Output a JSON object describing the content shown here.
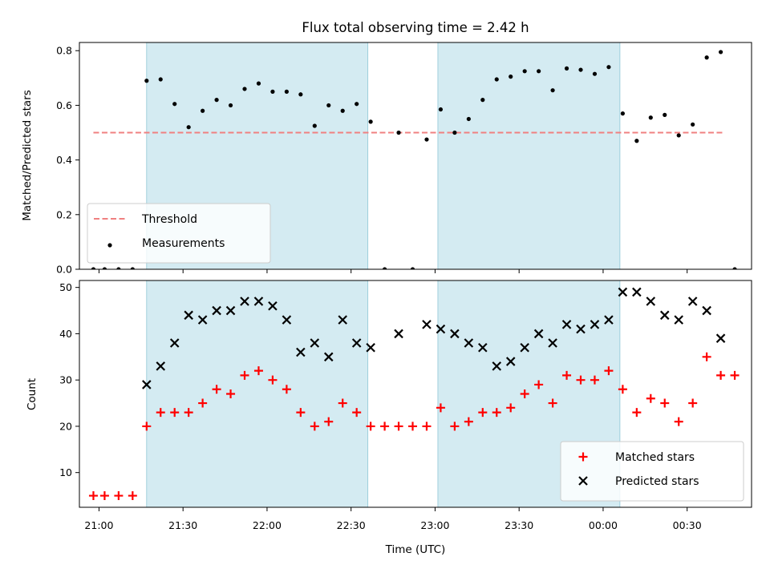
{
  "chart_data": [
    {
      "type": "scatter",
      "title": "Flux total observing time = 2.42 h",
      "xlabel": "",
      "ylabel": "Matched/Predicted stars",
      "xlim": [
        "20:53",
        "00:53"
      ],
      "ylim": [
        0,
        0.83
      ],
      "yticks": [
        "0.0",
        "0.2",
        "0.4",
        "0.6",
        "0.8"
      ],
      "grid": false,
      "shaded_intervals": [
        [
          "21:17",
          "22:36"
        ],
        [
          "23:01",
          "00:06"
        ]
      ],
      "threshold": {
        "name": "Threshold",
        "value": 0.5,
        "x_range": [
          "20:58",
          "00:43"
        ],
        "color": "#f08080"
      },
      "series": [
        {
          "name": "Measurements",
          "color": "#000000",
          "points": [
            [
              "20:58",
              0.0
            ],
            [
              "21:02",
              0.0
            ],
            [
              "21:07",
              0.0
            ],
            [
              "21:12",
              0.0
            ],
            [
              "21:17",
              0.69
            ],
            [
              "21:22",
              0.695
            ],
            [
              "21:27",
              0.605
            ],
            [
              "21:32",
              0.52
            ],
            [
              "21:37",
              0.58
            ],
            [
              "21:42",
              0.62
            ],
            [
              "21:47",
              0.6
            ],
            [
              "21:52",
              0.66
            ],
            [
              "21:57",
              0.68
            ],
            [
              "22:02",
              0.65
            ],
            [
              "22:07",
              0.65
            ],
            [
              "22:12",
              0.64
            ],
            [
              "22:17",
              0.525
            ],
            [
              "22:22",
              0.6
            ],
            [
              "22:27",
              0.58
            ],
            [
              "22:32",
              0.605
            ],
            [
              "22:37",
              0.54
            ],
            [
              "22:42",
              0.0
            ],
            [
              "22:47",
              0.5
            ],
            [
              "22:52",
              0.0
            ],
            [
              "22:57",
              0.475
            ],
            [
              "23:02",
              0.585
            ],
            [
              "23:07",
              0.5
            ],
            [
              "23:12",
              0.55
            ],
            [
              "23:17",
              0.62
            ],
            [
              "23:22",
              0.695
            ],
            [
              "23:27",
              0.705
            ],
            [
              "23:32",
              0.725
            ],
            [
              "23:37",
              0.725
            ],
            [
              "23:42",
              0.655
            ],
            [
              "23:47",
              0.735
            ],
            [
              "23:52",
              0.73
            ],
            [
              "23:57",
              0.715
            ],
            [
              "00:02",
              0.74
            ],
            [
              "00:07",
              0.57
            ],
            [
              "00:12",
              0.47
            ],
            [
              "00:17",
              0.555
            ],
            [
              "00:22",
              0.565
            ],
            [
              "00:27",
              0.49
            ],
            [
              "00:32",
              0.53
            ],
            [
              "00:37",
              0.775
            ],
            [
              "00:42",
              0.795
            ],
            [
              "00:47",
              0.0
            ]
          ]
        }
      ],
      "legend": {
        "placement": "lower-left",
        "entries": [
          "Threshold",
          "Measurements"
        ]
      }
    },
    {
      "type": "scatter",
      "title": "",
      "xlabel": "Time (UTC)",
      "ylabel": "Count",
      "xlim": [
        "20:53",
        "00:53"
      ],
      "ylim": [
        2.5,
        51.5
      ],
      "xticks": [
        "21:00",
        "21:30",
        "22:00",
        "22:30",
        "23:00",
        "23:30",
        "00:00",
        "00:30"
      ],
      "yticks": [
        "10",
        "20",
        "30",
        "40",
        "50"
      ],
      "grid": false,
      "shaded_intervals": [
        [
          "21:17",
          "22:36"
        ],
        [
          "23:01",
          "00:06"
        ]
      ],
      "series": [
        {
          "name": "Matched stars",
          "marker": "plus",
          "color": "#ff0000",
          "points": [
            [
              "20:58",
              5
            ],
            [
              "21:02",
              5
            ],
            [
              "21:07",
              5
            ],
            [
              "21:12",
              5
            ],
            [
              "21:17",
              20
            ],
            [
              "21:22",
              23
            ],
            [
              "21:27",
              23
            ],
            [
              "21:32",
              23
            ],
            [
              "21:37",
              25
            ],
            [
              "21:42",
              28
            ],
            [
              "21:47",
              27
            ],
            [
              "21:52",
              31
            ],
            [
              "21:57",
              32
            ],
            [
              "22:02",
              30
            ],
            [
              "22:07",
              28
            ],
            [
              "22:12",
              23
            ],
            [
              "22:17",
              20
            ],
            [
              "22:22",
              21
            ],
            [
              "22:27",
              25
            ],
            [
              "22:32",
              23
            ],
            [
              "22:37",
              20
            ],
            [
              "22:42",
              20
            ],
            [
              "22:47",
              20
            ],
            [
              "22:52",
              20
            ],
            [
              "22:57",
              20
            ],
            [
              "23:02",
              24
            ],
            [
              "23:07",
              20
            ],
            [
              "23:12",
              21
            ],
            [
              "23:17",
              23
            ],
            [
              "23:22",
              23
            ],
            [
              "23:27",
              24
            ],
            [
              "23:32",
              27
            ],
            [
              "23:37",
              29
            ],
            [
              "23:42",
              25
            ],
            [
              "23:47",
              31
            ],
            [
              "23:52",
              30
            ],
            [
              "23:57",
              30
            ],
            [
              "00:02",
              32
            ],
            [
              "00:07",
              28
            ],
            [
              "00:12",
              23
            ],
            [
              "00:17",
              26
            ],
            [
              "00:22",
              25
            ],
            [
              "00:27",
              21
            ],
            [
              "00:32",
              25
            ],
            [
              "00:37",
              35
            ],
            [
              "00:42",
              31
            ],
            [
              "00:47",
              31
            ]
          ]
        },
        {
          "name": "Predicted stars",
          "marker": "x",
          "color": "#000000",
          "points": [
            [
              "21:17",
              29
            ],
            [
              "21:22",
              33
            ],
            [
              "21:27",
              38
            ],
            [
              "21:32",
              44
            ],
            [
              "21:37",
              43
            ],
            [
              "21:42",
              45
            ],
            [
              "21:47",
              45
            ],
            [
              "21:52",
              47
            ],
            [
              "21:57",
              47
            ],
            [
              "22:02",
              46
            ],
            [
              "22:07",
              43
            ],
            [
              "22:12",
              36
            ],
            [
              "22:17",
              38
            ],
            [
              "22:22",
              35
            ],
            [
              "22:27",
              43
            ],
            [
              "22:32",
              38
            ],
            [
              "22:37",
              37
            ],
            [
              "22:47",
              40
            ],
            [
              "22:57",
              42
            ],
            [
              "23:02",
              41
            ],
            [
              "23:07",
              40
            ],
            [
              "23:12",
              38
            ],
            [
              "23:17",
              37
            ],
            [
              "23:22",
              33
            ],
            [
              "23:27",
              34
            ],
            [
              "23:32",
              37
            ],
            [
              "23:37",
              40
            ],
            [
              "23:42",
              38
            ],
            [
              "23:47",
              42
            ],
            [
              "23:52",
              41
            ],
            [
              "23:57",
              42
            ],
            [
              "00:02",
              43
            ],
            [
              "00:07",
              49
            ],
            [
              "00:12",
              49
            ],
            [
              "00:17",
              47
            ],
            [
              "00:22",
              44
            ],
            [
              "00:27",
              43
            ],
            [
              "00:32",
              47
            ],
            [
              "00:37",
              45
            ],
            [
              "00:42",
              39
            ]
          ]
        }
      ],
      "legend": {
        "placement": "lower-right",
        "entries": [
          "Matched stars",
          "Predicted stars"
        ]
      }
    }
  ]
}
